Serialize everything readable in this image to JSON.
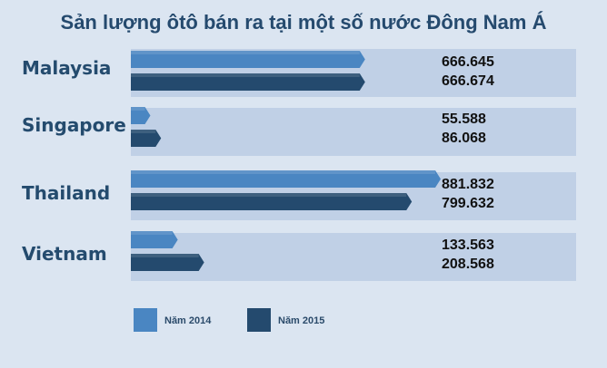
{
  "chart_data": {
    "type": "bar",
    "orientation": "horizontal",
    "title": "Sản lượng ôtô bán ra tại một số nước Đông Nam Á",
    "categories": [
      "Malaysia",
      "Singapore",
      "Thailand",
      "Vietnam"
    ],
    "series": [
      {
        "name": "Năm 2014",
        "values": [
          666645,
          55588,
          881832,
          133563
        ],
        "labels": [
          "666.645",
          "55.588",
          "881.832",
          "133.563"
        ],
        "color": "#4a86c2"
      },
      {
        "name": "Năm 2015",
        "values": [
          666674,
          86068,
          799632,
          208568
        ],
        "labels": [
          "666.674",
          "86.068",
          "799.632",
          "208.568"
        ],
        "color": "#244a6e"
      }
    ],
    "legend": "bottom-left",
    "grid": false
  },
  "colors": {
    "background": "#dbe5f1",
    "panel": "#c0d0e6",
    "title": "#254a6e"
  }
}
